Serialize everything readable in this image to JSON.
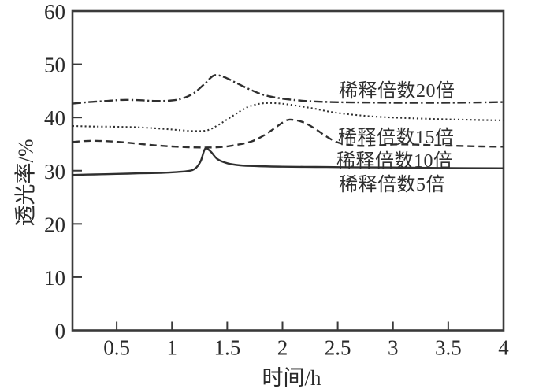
{
  "chart_data": {
    "type": "line",
    "title": "",
    "xlabel": "时间/h",
    "ylabel": "透光率/%",
    "xlim": [
      0.1,
      4
    ],
    "ylim": [
      0,
      60
    ],
    "grid": false,
    "legend_position": "inline-annotations",
    "axis_color": "#3a3a3a",
    "line_color": "#2f2f2f",
    "x_ticks": [
      0.5,
      1,
      1.5,
      2,
      2.5,
      3,
      3.5,
      4
    ],
    "x_tick_labels": [
      "0.5",
      "1",
      "1.5",
      "2",
      "2.5",
      "3",
      "3.5",
      "4"
    ],
    "y_ticks": [
      0,
      10,
      20,
      30,
      40,
      50,
      60
    ],
    "y_tick_labels": [
      "0",
      "10",
      "20",
      "30",
      "40",
      "50",
      "60"
    ],
    "series": [
      {
        "name": "dilution-20x",
        "label": "稀释倍数20倍",
        "line_style": "dash-dot",
        "peak": {
          "x": 1.38,
          "y": 47.9
        },
        "points": [
          [
            0.1,
            42.6
          ],
          [
            0.25,
            42.9
          ],
          [
            0.4,
            43.1
          ],
          [
            0.55,
            43.3
          ],
          [
            0.7,
            43.25
          ],
          [
            0.85,
            43.1
          ],
          [
            1.0,
            43.2
          ],
          [
            1.1,
            43.6
          ],
          [
            1.2,
            44.6
          ],
          [
            1.3,
            46.4
          ],
          [
            1.38,
            47.9
          ],
          [
            1.47,
            47.6
          ],
          [
            1.58,
            46.5
          ],
          [
            1.7,
            45.3
          ],
          [
            1.82,
            44.3
          ],
          [
            1.95,
            43.7
          ],
          [
            2.1,
            43.3
          ],
          [
            2.3,
            43.0
          ],
          [
            2.55,
            42.85
          ],
          [
            2.8,
            42.8
          ],
          [
            3.1,
            42.75
          ],
          [
            3.4,
            42.75
          ],
          [
            3.7,
            42.8
          ],
          [
            4.0,
            42.9
          ]
        ]
      },
      {
        "name": "dilution-15x",
        "label": "稀释倍数15倍",
        "line_style": "dotted",
        "peak": {
          "x": 1.9,
          "y": 42.7
        },
        "points": [
          [
            0.1,
            38.4
          ],
          [
            0.3,
            38.3
          ],
          [
            0.5,
            38.25
          ],
          [
            0.7,
            38.15
          ],
          [
            0.9,
            37.9
          ],
          [
            1.05,
            37.65
          ],
          [
            1.2,
            37.45
          ],
          [
            1.32,
            37.6
          ],
          [
            1.42,
            38.6
          ],
          [
            1.55,
            40.3
          ],
          [
            1.68,
            41.9
          ],
          [
            1.8,
            42.6
          ],
          [
            1.92,
            42.7
          ],
          [
            2.05,
            42.45
          ],
          [
            2.25,
            41.8
          ],
          [
            2.45,
            41.0
          ],
          [
            2.65,
            40.5
          ],
          [
            2.85,
            40.15
          ],
          [
            3.1,
            39.9
          ],
          [
            3.4,
            39.7
          ],
          [
            3.7,
            39.55
          ],
          [
            4.0,
            39.45
          ]
        ]
      },
      {
        "name": "dilution-10x",
        "label": "稀释倍数10倍",
        "line_style": "dashed",
        "peak": {
          "x": 2.07,
          "y": 39.6
        },
        "points": [
          [
            0.1,
            35.4
          ],
          [
            0.25,
            35.6
          ],
          [
            0.4,
            35.55
          ],
          [
            0.55,
            35.35
          ],
          [
            0.7,
            35.05
          ],
          [
            0.85,
            34.75
          ],
          [
            1.0,
            34.55
          ],
          [
            1.15,
            34.4
          ],
          [
            1.3,
            34.35
          ],
          [
            1.45,
            34.45
          ],
          [
            1.6,
            34.9
          ],
          [
            1.72,
            35.5
          ],
          [
            1.83,
            36.6
          ],
          [
            1.93,
            38.0
          ],
          [
            2.03,
            39.4
          ],
          [
            2.1,
            39.55
          ],
          [
            2.2,
            39.0
          ],
          [
            2.3,
            37.8
          ],
          [
            2.4,
            36.4
          ],
          [
            2.5,
            35.3
          ],
          [
            2.62,
            34.8
          ],
          [
            2.75,
            34.65
          ],
          [
            2.9,
            34.8
          ],
          [
            3.05,
            34.95
          ],
          [
            3.2,
            34.9
          ],
          [
            3.4,
            34.75
          ],
          [
            3.6,
            34.65
          ],
          [
            3.8,
            34.55
          ],
          [
            4.0,
            34.5
          ]
        ]
      },
      {
        "name": "dilution-5x",
        "label": "稀释倍数5倍",
        "line_style": "solid",
        "peak": {
          "x": 1.3,
          "y": 34.2
        },
        "points": [
          [
            0.1,
            29.2
          ],
          [
            0.3,
            29.3
          ],
          [
            0.5,
            29.4
          ],
          [
            0.7,
            29.5
          ],
          [
            0.9,
            29.6
          ],
          [
            1.05,
            29.75
          ],
          [
            1.15,
            29.95
          ],
          [
            1.21,
            30.4
          ],
          [
            1.26,
            31.8
          ],
          [
            1.3,
            34.1
          ],
          [
            1.35,
            33.6
          ],
          [
            1.41,
            32.2
          ],
          [
            1.5,
            31.4
          ],
          [
            1.62,
            31.0
          ],
          [
            1.78,
            30.85
          ],
          [
            2.0,
            30.75
          ],
          [
            2.3,
            30.7
          ],
          [
            2.6,
            30.65
          ],
          [
            3.0,
            30.6
          ],
          [
            3.5,
            30.5
          ],
          [
            4.0,
            30.45
          ]
        ]
      }
    ]
  }
}
